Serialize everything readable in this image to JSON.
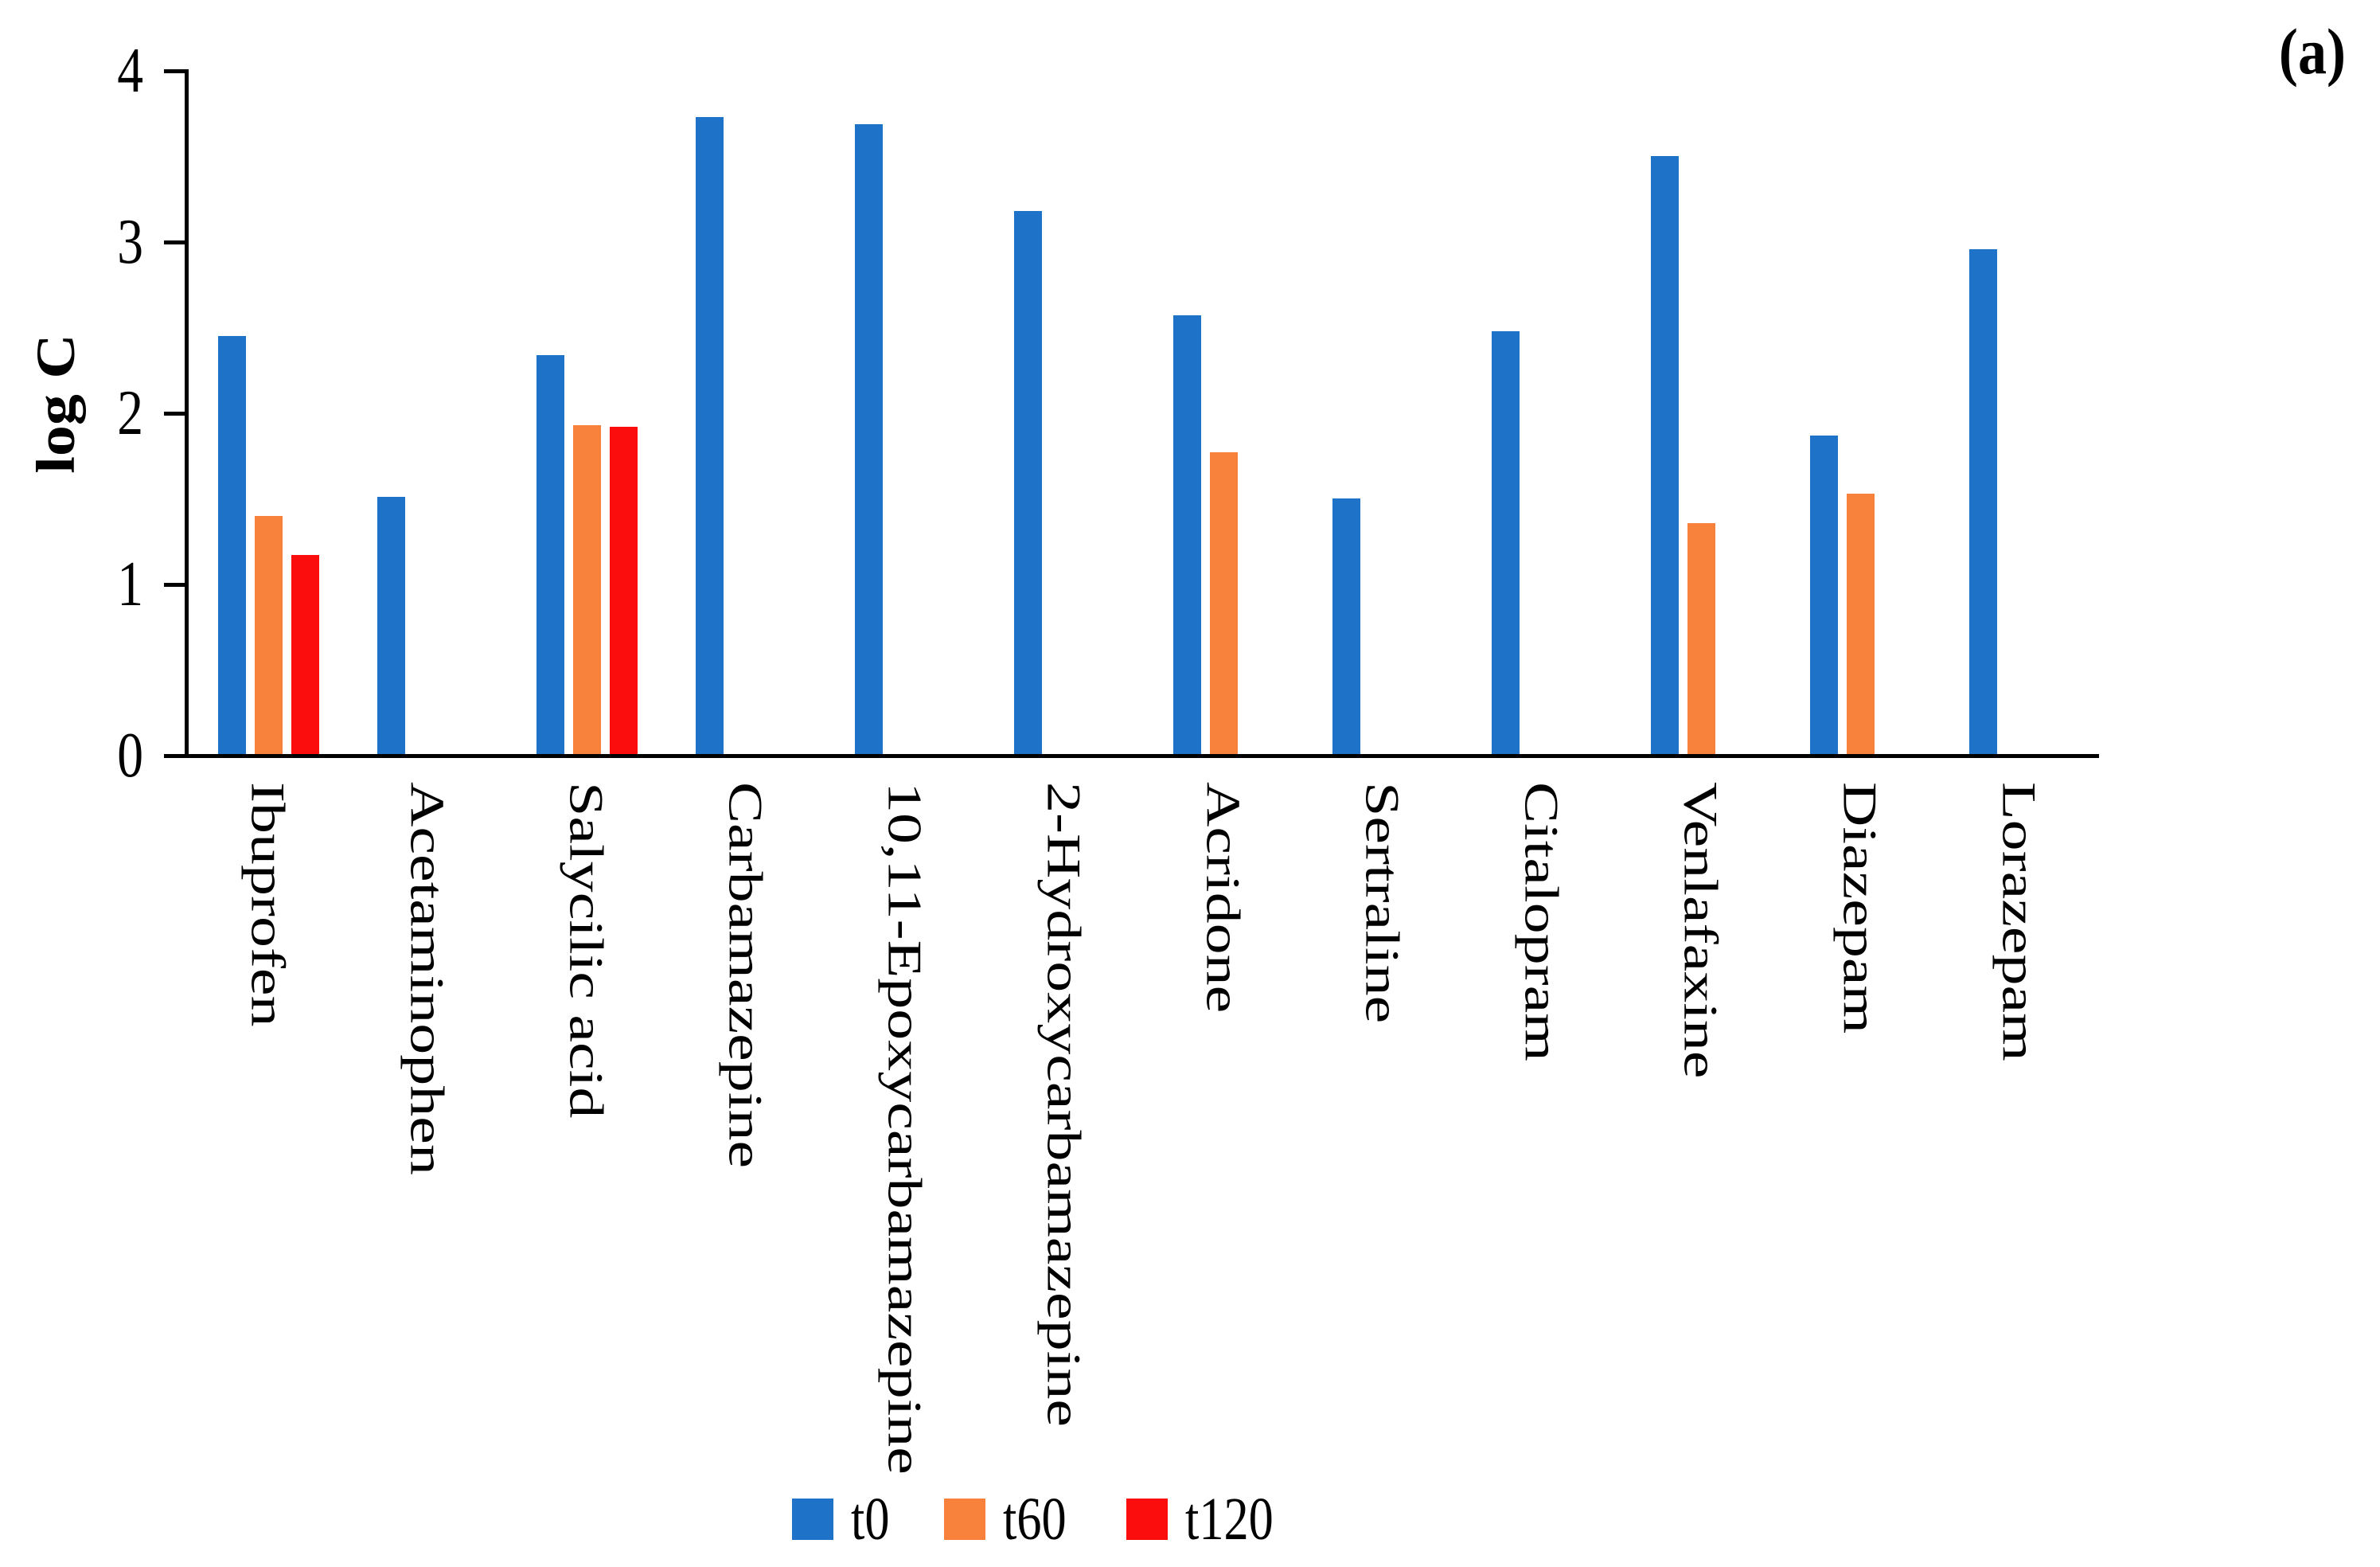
{
  "panel_label": "(a)",
  "colors": {
    "axis": "#000000",
    "background": "#ffffff",
    "t0": "#1E73C8",
    "t60": "#F8823C",
    "t120": "#FB0D0D"
  },
  "chart_data": {
    "type": "bar",
    "title": "",
    "xlabel": "",
    "ylabel": "log C",
    "ylim": [
      0,
      4
    ],
    "yticks": [
      0,
      1,
      2,
      3,
      4
    ],
    "grid": false,
    "legend_position": "bottom",
    "categories": [
      "Ibuprofen",
      "Acetaminophen",
      "Salycilic acid",
      "Carbamazepine",
      "10,11-Epoxycarbamazepine",
      "2-Hydroxycarbamazepine",
      "Acridone",
      "Sertraline",
      "Citalopram",
      "Venlafaxine",
      "Diazepam",
      "Lorazepam"
    ],
    "series": [
      {
        "name": "t0",
        "color": "#1E73C8",
        "values": [
          2.45,
          1.51,
          2.34,
          3.73,
          3.69,
          3.18,
          2.57,
          1.5,
          2.48,
          3.5,
          1.87,
          2.96
        ]
      },
      {
        "name": "t60",
        "color": "#F8823C",
        "values": [
          1.4,
          null,
          1.93,
          null,
          null,
          null,
          1.77,
          null,
          null,
          1.36,
          1.53,
          null
        ]
      },
      {
        "name": "t120",
        "color": "#FB0D0D",
        "values": [
          1.17,
          null,
          1.92,
          null,
          null,
          null,
          null,
          null,
          null,
          null,
          null,
          null
        ]
      }
    ]
  }
}
